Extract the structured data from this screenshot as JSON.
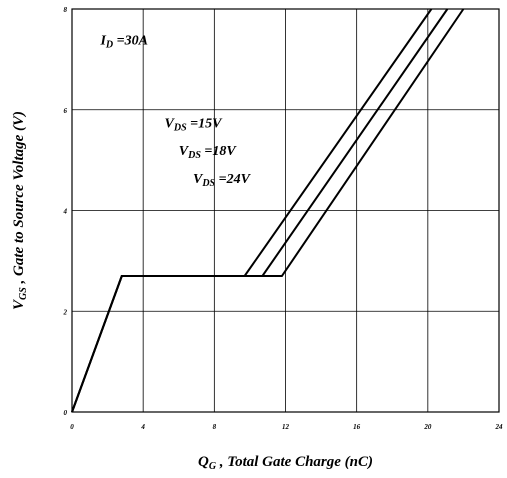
{
  "chart_data": {
    "type": "line",
    "xlim": [
      0,
      24
    ],
    "ylim": [
      0,
      8
    ],
    "x_ticks": [
      0,
      4,
      8,
      12,
      16,
      20,
      24
    ],
    "y_ticks": [
      0,
      2,
      4,
      6,
      8
    ],
    "grid": true,
    "xlabel": {
      "main": "Q",
      "sub": "G",
      "rest": " , Total Gate Charge (nC)"
    },
    "ylabel": {
      "main": "V",
      "sub": "GS",
      "rest": " , Gate to Source Voltage (V)"
    },
    "annotations": [
      {
        "main": "I",
        "sub": "D",
        "rest": " =30A",
        "x": 1.6,
        "y": 7.3
      },
      {
        "main": "V",
        "sub": "DS",
        "rest": " =15V",
        "x": 5.2,
        "y": 5.65
      },
      {
        "main": "V",
        "sub": "DS",
        "rest": " =18V",
        "x": 6.0,
        "y": 5.1
      },
      {
        "main": "V",
        "sub": "DS",
        "rest": " =24V",
        "x": 6.8,
        "y": 4.55
      }
    ],
    "series": [
      {
        "x": [
          0,
          2.8,
          9.7,
          20.2
        ],
        "y": [
          0,
          2.7,
          2.7,
          8
        ]
      },
      {
        "x": [
          0,
          2.8,
          10.7,
          21.1
        ],
        "y": [
          0,
          2.7,
          2.7,
          8
        ]
      },
      {
        "x": [
          0,
          2.8,
          11.8,
          22.0
        ],
        "y": [
          0,
          2.7,
          2.7,
          8
        ]
      }
    ]
  }
}
